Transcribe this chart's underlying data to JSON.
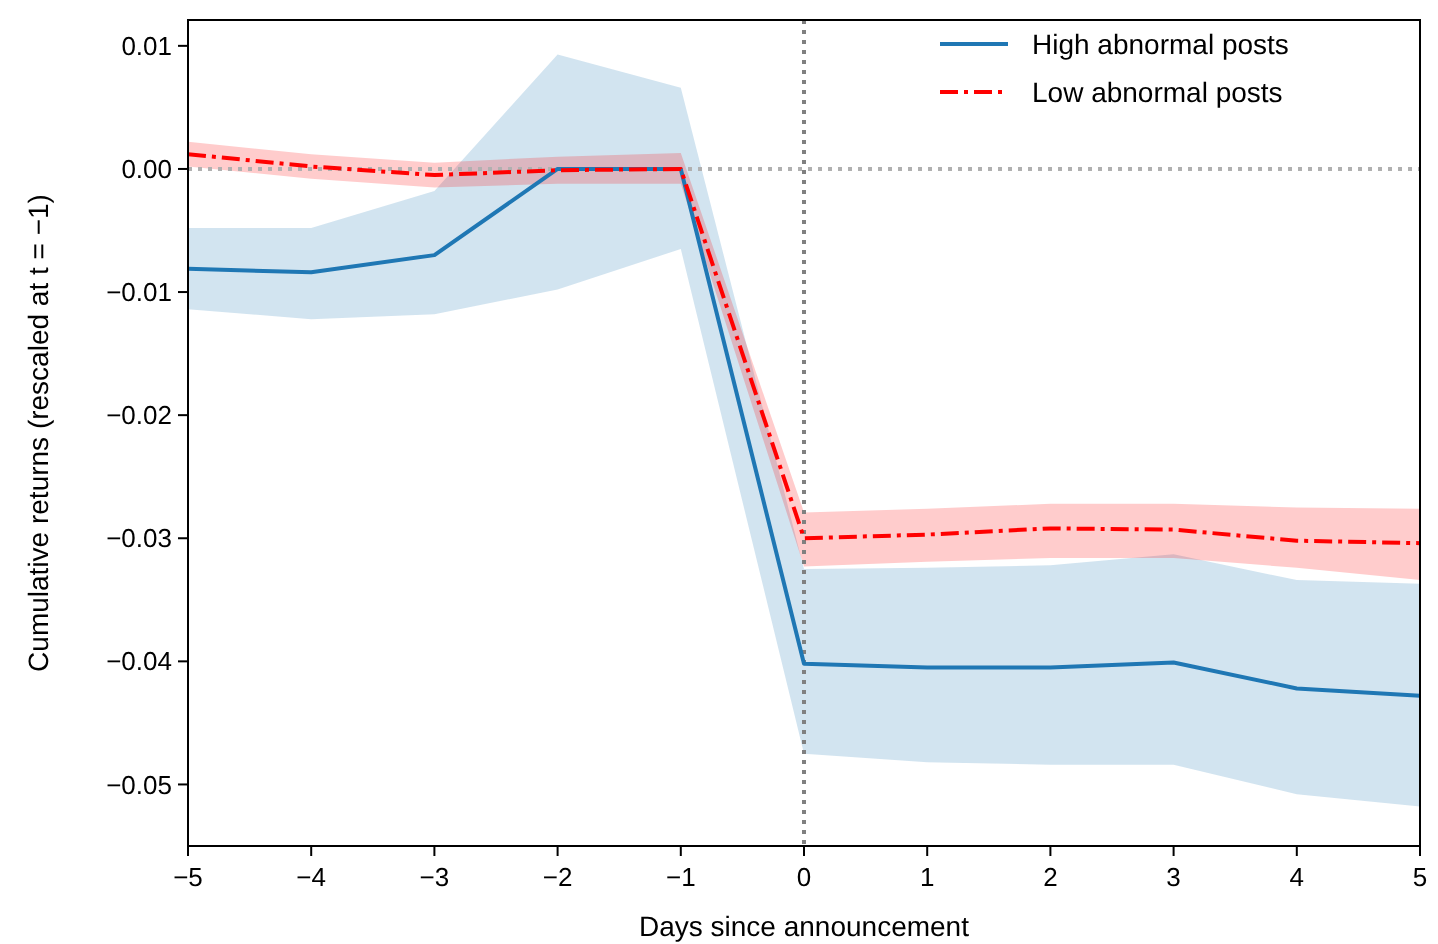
{
  "chart_data": {
    "type": "line",
    "xlabel": "Days since announcement",
    "ylabel": "Cumulative returns (rescaled at t = −1)",
    "x": [
      -5,
      -4,
      -3,
      -2,
      -1,
      0,
      1,
      2,
      3,
      4,
      5
    ],
    "series": [
      {
        "name": "High abnormal posts",
        "color": "#1f77b4",
        "line_style": "solid",
        "values": [
          -0.0081,
          -0.0084,
          -0.007,
          0.0,
          0.0,
          -0.0402,
          -0.0405,
          -0.0405,
          -0.0401,
          -0.0422,
          -0.0428
        ],
        "lower": [
          -0.0114,
          -0.0122,
          -0.0118,
          -0.0098,
          -0.0065,
          -0.0475,
          -0.0482,
          -0.0484,
          -0.0484,
          -0.0508,
          -0.0518
        ],
        "upper": [
          -0.0048,
          -0.0048,
          -0.0018,
          0.0093,
          0.0066,
          -0.0325,
          -0.0324,
          -0.0322,
          -0.0313,
          -0.0334,
          -0.0337
        ]
      },
      {
        "name": "Low abnormal posts",
        "color": "#ff0000",
        "line_style": "dashdot",
        "values": [
          0.0012,
          0.0002,
          -0.0005,
          -0.0001,
          0.0,
          -0.03,
          -0.0297,
          -0.0292,
          -0.0293,
          -0.0302,
          -0.0304
        ],
        "lower": [
          0.0002,
          -0.0008,
          -0.0015,
          -0.0012,
          -0.0012,
          -0.0323,
          -0.0319,
          -0.0316,
          -0.0316,
          -0.0324,
          -0.0334
        ],
        "upper": [
          0.0022,
          0.0012,
          0.0005,
          0.001,
          0.0013,
          -0.0279,
          -0.0276,
          -0.0272,
          -0.0272,
          -0.0275,
          -0.0276
        ]
      }
    ],
    "xlim": [
      -5,
      5
    ],
    "ylim": [
      -0.055,
      0.0121
    ],
    "xticks": [
      {
        "value": -5,
        "label": "−5"
      },
      {
        "value": -4,
        "label": "−4"
      },
      {
        "value": -3,
        "label": "−3"
      },
      {
        "value": -2,
        "label": "−2"
      },
      {
        "value": -1,
        "label": "−1"
      },
      0,
      1,
      2,
      3,
      4,
      5
    ],
    "yticks": [
      {
        "value": 0.01,
        "label": "0.01"
      },
      {
        "value": 0,
        "label": "0.00"
      },
      {
        "value": -0.01,
        "label": "−0.01"
      },
      {
        "value": -0.02,
        "label": "−0.02"
      },
      {
        "value": -0.03,
        "label": "−0.03"
      },
      {
        "value": -0.04,
        "label": "−0.04"
      },
      {
        "value": -0.05,
        "label": "−0.05"
      }
    ],
    "ref_lines": [
      {
        "axis": "x",
        "value": 0,
        "color": "#808080",
        "line_style": "dotted"
      },
      {
        "axis": "y",
        "value": 0,
        "color": "#b0b0b0",
        "line_style": "dotted"
      }
    ],
    "legend": "top right",
    "grid": false
  }
}
